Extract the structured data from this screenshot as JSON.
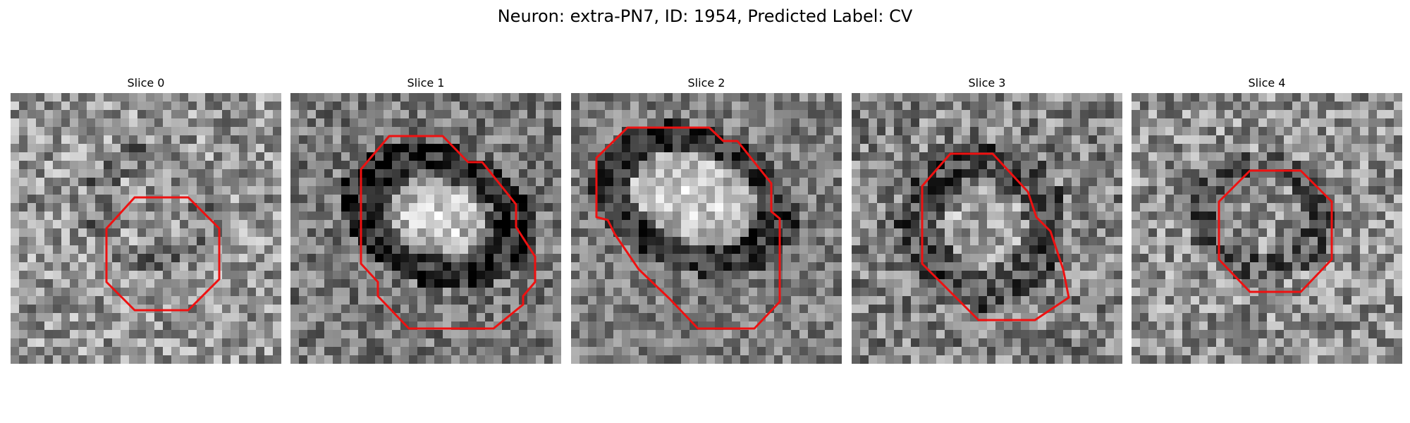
{
  "figure": {
    "title": "Neuron: extra-PN7, ID: 1954, Predicted Label: CV"
  },
  "colors": {
    "contour": "#ee1111",
    "background": "#ffffff"
  },
  "slices": [
    {
      "title": "Slice 0"
    },
    {
      "title": "Slice 1"
    },
    {
      "title": "Slice 2"
    },
    {
      "title": "Slice 3"
    },
    {
      "title": "Slice 4"
    }
  ]
}
